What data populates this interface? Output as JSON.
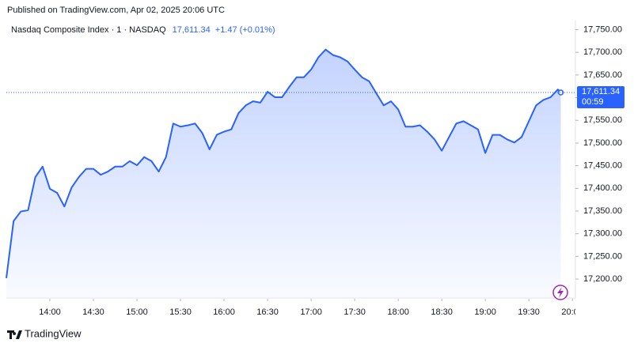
{
  "header": {
    "published": "Published on TradingView.com, Apr 02, 2025 20:06 UTC",
    "logo": "TradingView"
  },
  "chart_data": {
    "type": "area",
    "symbol": "Nasdaq Composite Index · 1 · NASDAQ",
    "change_label": "+1.47 (+0.01%)",
    "countdown": "00:59",
    "color": "#2962ff",
    "price_line": {
      "value": 17611.34,
      "label": "17,611.34"
    },
    "x": [
      "13:30",
      "13:35",
      "13:40",
      "13:45",
      "13:50",
      "13:55",
      "14:00",
      "14:05",
      "14:10",
      "14:15",
      "14:20",
      "14:25",
      "14:30",
      "14:35",
      "14:40",
      "14:45",
      "14:50",
      "14:55",
      "15:00",
      "15:05",
      "15:10",
      "15:15",
      "15:20",
      "15:25",
      "15:30",
      "15:35",
      "15:40",
      "15:45",
      "15:50",
      "15:55",
      "16:00",
      "16:05",
      "16:10",
      "16:15",
      "16:20",
      "16:25",
      "16:30",
      "16:35",
      "16:40",
      "16:45",
      "16:50",
      "16:55",
      "17:00",
      "17:05",
      "17:10",
      "17:15",
      "17:20",
      "17:25",
      "17:30",
      "17:35",
      "17:40",
      "17:45",
      "17:50",
      "17:55",
      "18:00",
      "18:05",
      "18:10",
      "18:15",
      "18:20",
      "18:25",
      "18:30",
      "18:35",
      "18:40",
      "18:45",
      "18:50",
      "18:55",
      "19:00",
      "19:05",
      "19:10",
      "19:15",
      "19:20",
      "19:25",
      "19:30",
      "19:35",
      "19:40",
      "19:45",
      "19:50",
      "19:52"
    ],
    "values": [
      17202,
      17328,
      17349,
      17352,
      17425,
      17448,
      17399,
      17390,
      17360,
      17402,
      17425,
      17443,
      17443,
      17430,
      17437,
      17448,
      17448,
      17460,
      17451,
      17469,
      17460,
      17437,
      17469,
      17543,
      17536,
      17539,
      17543,
      17522,
      17486,
      17518,
      17525,
      17530,
      17566,
      17583,
      17592,
      17589,
      17613,
      17601,
      17601,
      17624,
      17645,
      17645,
      17662,
      17689,
      17706,
      17694,
      17689,
      17680,
      17662,
      17645,
      17636,
      17609,
      17583,
      17592,
      17574,
      17536,
      17536,
      17539,
      17525,
      17508,
      17483,
      17513,
      17543,
      17548,
      17539,
      17530,
      17478,
      17518,
      17518,
      17508,
      17501,
      17513,
      17548,
      17583,
      17595,
      17601,
      17618,
      17611.34
    ],
    "xlim": [
      "13:30",
      "20:01"
    ],
    "xticks": [
      "14:00",
      "14:30",
      "15:00",
      "15:30",
      "16:00",
      "16:30",
      "17:00",
      "17:30",
      "18:00",
      "18:30",
      "19:00",
      "19:30",
      "20:00"
    ],
    "ylim": [
      17160,
      17770
    ],
    "yticks": [
      {
        "value": 17200,
        "label": "17,200.00"
      },
      {
        "value": 17250,
        "label": "17,250.00"
      },
      {
        "value": 17300,
        "label": "17,300.00"
      },
      {
        "value": 17350,
        "label": "17,350.00"
      },
      {
        "value": 17400,
        "label": "17,400.00"
      },
      {
        "value": 17450,
        "label": "17,450.00"
      },
      {
        "value": 17500,
        "label": "17,500.00"
      },
      {
        "value": 17550,
        "label": "17,550.00"
      },
      {
        "value": 17600,
        "label": "17,600.00"
      },
      {
        "value": 17650,
        "label": "17,650.00"
      },
      {
        "value": 17700,
        "label": "17,700.00"
      },
      {
        "value": 17750,
        "label": "17,750.00"
      }
    ]
  }
}
